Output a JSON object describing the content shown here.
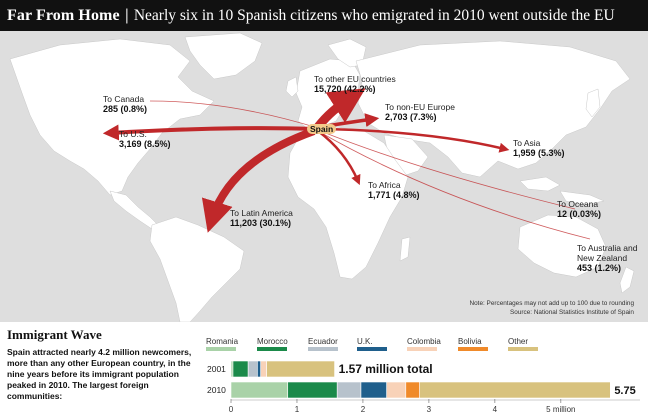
{
  "header": {
    "title": "Far From Home",
    "separator": "|",
    "subtitle": "Nearly six in 10 Spanish citizens who emigrated in 2010 went outside the EU"
  },
  "map": {
    "origin": "Spain",
    "flows": [
      {
        "dest": "To other EU countries",
        "value": "15,720 (42.2%)"
      },
      {
        "dest": "To non-EU Europe",
        "value": "2,703 (7.3%)"
      },
      {
        "dest": "To Canada",
        "value": "285 (0.8%)"
      },
      {
        "dest": "To U.S.",
        "value": "3,169 (8.5%)"
      },
      {
        "dest": "To Asia",
        "value": "1,959 (5.3%)"
      },
      {
        "dest": "To Africa",
        "value": "1,771 (4.8%)"
      },
      {
        "dest": "To Oceana",
        "value": "12 (0.03%)"
      },
      {
        "dest": "To Latin America",
        "value": "11,203 (30.1%)"
      },
      {
        "dest": "To Australia and",
        "dest2": "New Zealand",
        "value": "453 (1.2%)"
      }
    ],
    "note": "Note: Percentages may not add up to 100 due to rounding",
    "source": "Source: National Statistics Institute of Spain",
    "colors": {
      "arrow": "#c0282a",
      "land": "#ffffff",
      "sea": "#dedede"
    }
  },
  "immigrant_wave": {
    "title": "Immigrant Wave",
    "text": "Spain attracted nearly 4.2 million newcomers, more than any other European country, in the nine years before its immigrant population peaked in 2010. The largest foreign communities:"
  },
  "chart_data": {
    "type": "bar",
    "orientation": "horizontal",
    "stacked": true,
    "categories": [
      "2001",
      "2010"
    ],
    "series": [
      {
        "name": "Romania",
        "color": "#a9d2a8",
        "values": [
          0.03,
          0.86
        ]
      },
      {
        "name": "Morocco",
        "color": "#1b8a4a",
        "values": [
          0.23,
          0.75
        ]
      },
      {
        "name": "Ecuador",
        "color": "#b7c2cc",
        "values": [
          0.14,
          0.36
        ]
      },
      {
        "name": "U.K.",
        "color": "#1f5f8c",
        "values": [
          0.05,
          0.39
        ]
      },
      {
        "name": "Colombia",
        "color": "#f8d2b8",
        "values": [
          0.09,
          0.29
        ]
      },
      {
        "name": "Bolivia",
        "color": "#f08a2a",
        "values": [
          0.0,
          0.21
        ]
      },
      {
        "name": "Other",
        "color": "#d8c27e",
        "values": [
          1.03,
          2.89
        ]
      }
    ],
    "totals": [
      1.57,
      5.75
    ],
    "total_labels": [
      "1.57 million total",
      "5.75"
    ],
    "x_ticks": [
      0,
      1,
      2,
      3,
      4,
      5
    ],
    "x_tick_labels": [
      "0",
      "1",
      "2",
      "3",
      "4",
      "5 million"
    ],
    "xlim": [
      0,
      6.2
    ]
  }
}
